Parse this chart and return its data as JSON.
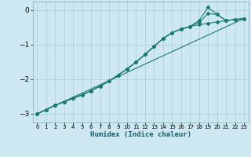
{
  "x": [
    0,
    1,
    2,
    3,
    4,
    5,
    6,
    7,
    8,
    9,
    10,
    11,
    12,
    13,
    14,
    15,
    16,
    17,
    18,
    19,
    20,
    21,
    22,
    23
  ],
  "line_straight": [
    -3.0,
    -2.88,
    -2.76,
    -2.64,
    -2.52,
    -2.4,
    -2.28,
    -2.16,
    -2.04,
    -1.92,
    -1.8,
    -1.68,
    -1.56,
    -1.44,
    -1.32,
    -1.2,
    -1.08,
    -0.96,
    -0.84,
    -0.72,
    -0.6,
    -0.48,
    -0.36,
    -0.24
  ],
  "line_main": [
    -3.0,
    -2.88,
    -2.75,
    -2.65,
    -2.55,
    -2.45,
    -2.33,
    -2.2,
    -2.05,
    -1.88,
    -1.7,
    -1.5,
    -1.28,
    -1.05,
    -0.82,
    -0.65,
    -0.55,
    -0.47,
    -0.42,
    -0.38,
    -0.34,
    -0.3,
    -0.27,
    -0.24
  ],
  "line_mid": [
    -3.0,
    -2.88,
    -2.75,
    -2.65,
    -2.55,
    -2.45,
    -2.33,
    -2.2,
    -2.05,
    -1.88,
    -1.7,
    -1.5,
    -1.28,
    -1.05,
    -0.82,
    -0.65,
    -0.55,
    -0.47,
    -0.35,
    -0.1,
    -0.12,
    -0.3,
    -0.27,
    -0.24
  ],
  "line_high": [
    -3.0,
    -2.88,
    -2.75,
    -2.65,
    -2.55,
    -2.45,
    -2.33,
    -2.2,
    -2.05,
    -1.88,
    -1.7,
    -1.5,
    -1.28,
    -1.05,
    -0.82,
    -0.65,
    -0.55,
    -0.47,
    -0.3,
    0.08,
    -0.12,
    -0.3,
    -0.27,
    -0.24
  ],
  "line_color": "#1a7a6e",
  "bg_color": "#cde8f0",
  "grid_color": "#aacdd8",
  "xlabel": "Humidex (Indice chaleur)",
  "ylim": [
    -3.25,
    0.25
  ],
  "xlim": [
    -0.5,
    23.5
  ],
  "yticks": [
    0,
    -1,
    -2,
    -3
  ],
  "xticks": [
    0,
    1,
    2,
    3,
    4,
    5,
    6,
    7,
    8,
    9,
    10,
    11,
    12,
    13,
    14,
    15,
    16,
    17,
    18,
    19,
    20,
    21,
    22,
    23
  ]
}
